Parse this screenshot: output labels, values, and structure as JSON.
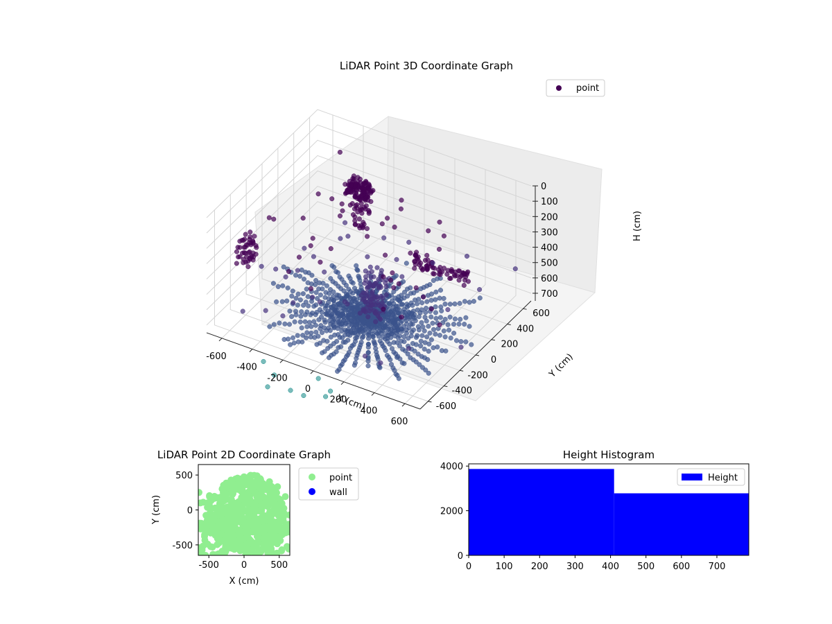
{
  "chart_data": [
    {
      "type": "scatter",
      "title": "LiDAR Point 3D Coordinate Graph",
      "xlabel": "X (cm)",
      "ylabel": "Y (cm)",
      "zlabel": "H (cm)",
      "xlim": [
        -700,
        700
      ],
      "ylim": [
        -700,
        700
      ],
      "zlim": [
        750,
        0
      ],
      "x_ticks": [
        -600,
        -400,
        -200,
        0,
        200,
        400,
        600
      ],
      "y_ticks": [
        -600,
        -400,
        -200,
        0,
        200,
        400,
        600
      ],
      "z_ticks": [
        0,
        100,
        200,
        300,
        400,
        500,
        600,
        700
      ],
      "grid": true,
      "legend": {
        "placement": "top-right",
        "entries": [
          "point"
        ]
      },
      "colormap": "viridis (by height)",
      "colors": {
        "point_dark": "#440154",
        "point_mid": "#3b528b",
        "point_light": "#21908d"
      },
      "series": [
        {
          "name": "point",
          "structure": "radial rays from origin on floor plus vertical clusters",
          "points": [
            [
              0,
              0,
              750
            ],
            [
              150,
              50,
              750
            ],
            [
              -150,
              80,
              750
            ],
            [
              80,
              -150,
              750
            ],
            [
              -60,
              -120,
              750
            ],
            [
              -300,
              380,
              200
            ],
            [
              -250,
              420,
              220
            ],
            [
              -200,
              400,
              190
            ],
            [
              -280,
              350,
              240
            ],
            [
              220,
              140,
              430
            ],
            [
              300,
              140,
              400
            ],
            [
              400,
              150,
              340
            ],
            [
              500,
              160,
              330
            ],
            [
              560,
              180,
              340
            ],
            [
              -640,
              -400,
              360
            ],
            [
              -620,
              -360,
              380
            ],
            [
              -650,
              -300,
              350
            ],
            [
              -600,
              -330,
              400
            ],
            [
              650,
              650,
              80
            ],
            [
              700,
              700,
              300
            ],
            [
              -600,
              650,
              480
            ],
            [
              560,
              -650,
              560
            ]
          ]
        }
      ]
    },
    {
      "type": "scatter",
      "title": "LiDAR Point 2D Coordinate Graph",
      "xlabel": "X (cm)",
      "ylabel": "Y (cm)",
      "xlim": [
        -650,
        650
      ],
      "ylim": [
        -650,
        650
      ],
      "x_ticks": [
        -500,
        0,
        500
      ],
      "y_ticks": [
        -500,
        0,
        500
      ],
      "legend": {
        "placement": "right-outside",
        "entries": [
          "point",
          "wall"
        ]
      },
      "colors": {
        "point": "#90ee90",
        "wall": "#0000ff"
      },
      "series": [
        {
          "name": "point",
          "region": "dense disc centered near origin, radius about 550 cm"
        },
        {
          "name": "wall",
          "points": []
        }
      ]
    },
    {
      "type": "bar",
      "title": "Height Histogram",
      "xlabel": "",
      "ylabel": "",
      "xlim": [
        0,
        790
      ],
      "ylim": [
        0,
        4100
      ],
      "x_ticks": [
        0,
        100,
        200,
        300,
        400,
        500,
        600,
        700
      ],
      "y_ticks": [
        0,
        2000,
        4000
      ],
      "legend": {
        "placement": "top-right",
        "entries": [
          "Height"
        ]
      },
      "colors": {
        "Height": "#0000ff"
      },
      "series": [
        {
          "name": "Height",
          "bins": [
            [
              0,
              410,
              3870
            ],
            [
              410,
              790,
              2780
            ]
          ]
        }
      ]
    }
  ]
}
